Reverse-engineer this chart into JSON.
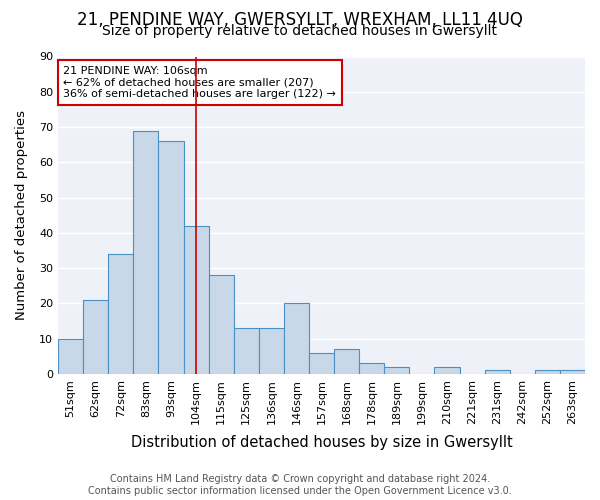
{
  "title": "21, PENDINE WAY, GWERSYLLT, WREXHAM, LL11 4UQ",
  "subtitle": "Size of property relative to detached houses in Gwersyllt",
  "xlabel": "Distribution of detached houses by size in Gwersyllt",
  "ylabel": "Number of detached properties",
  "categories": [
    "51sqm",
    "62sqm",
    "72sqm",
    "83sqm",
    "93sqm",
    "104sqm",
    "115sqm",
    "125sqm",
    "136sqm",
    "146sqm",
    "157sqm",
    "168sqm",
    "178sqm",
    "189sqm",
    "199sqm",
    "210sqm",
    "221sqm",
    "231sqm",
    "242sqm",
    "252sqm",
    "263sqm"
  ],
  "values": [
    10,
    21,
    34,
    69,
    66,
    42,
    28,
    13,
    13,
    20,
    6,
    7,
    3,
    2,
    0,
    2,
    0,
    1,
    0,
    1,
    1
  ],
  "bar_color": "#c8d8e8",
  "bar_edge_color": "#4a90c4",
  "vline_x": 5,
  "vline_color": "#cc0000",
  "annotation_text": "21 PENDINE WAY: 106sqm\n← 62% of detached houses are smaller (207)\n36% of semi-detached houses are larger (122) →",
  "annotation_box_color": "white",
  "annotation_box_edge": "#cc0000",
  "ylim": [
    0,
    90
  ],
  "yticks": [
    0,
    10,
    20,
    30,
    40,
    50,
    60,
    70,
    80,
    90
  ],
  "background_color": "#eef2f8",
  "grid_color": "white",
  "footer": "Contains HM Land Registry data © Crown copyright and database right 2024.\nContains public sector information licensed under the Open Government Licence v3.0.",
  "title_fontsize": 12,
  "subtitle_fontsize": 10,
  "xlabel_fontsize": 10.5,
  "ylabel_fontsize": 9.5,
  "tick_fontsize": 8,
  "footer_fontsize": 7
}
